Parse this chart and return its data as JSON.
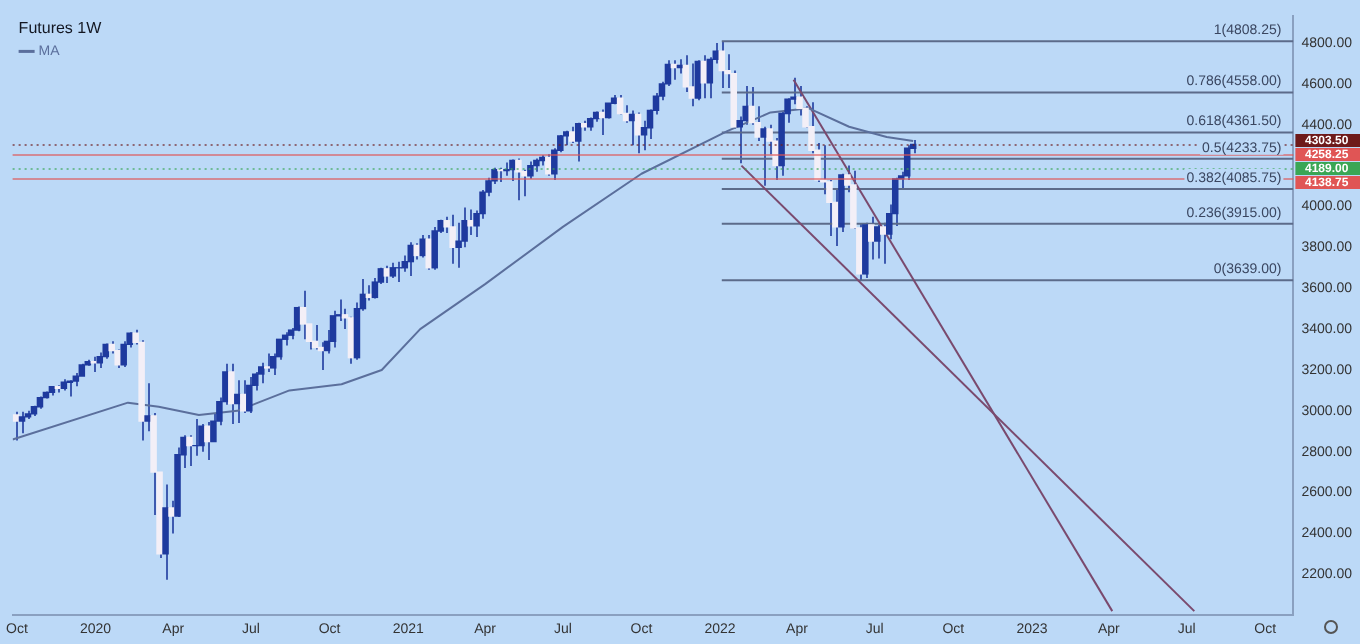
{
  "chart_data": {
    "type": "candlestick",
    "title": "Futures 1W",
    "legend": "top left",
    "xlim": [
      "2019-09-26",
      "2023-11-03"
    ],
    "ylim": [
      2000,
      4930
    ],
    "xticks": [
      {
        "value": "2019-10-01",
        "label": "Oct"
      },
      {
        "value": "2020-01-01",
        "label": "2020"
      },
      {
        "value": "2020-04-01",
        "label": "Apr"
      },
      {
        "value": "2020-07-01",
        "label": "Jul"
      },
      {
        "value": "2020-10-01",
        "label": "Oct"
      },
      {
        "value": "2021-01-01",
        "label": "2021"
      },
      {
        "value": "2021-04-01",
        "label": "Apr"
      },
      {
        "value": "2021-07-01",
        "label": "Jul"
      },
      {
        "value": "2021-10-01",
        "label": "Oct"
      },
      {
        "value": "2022-01-01",
        "label": "2022"
      },
      {
        "value": "2022-04-01",
        "label": "Apr"
      },
      {
        "value": "2022-07-01",
        "label": "Jul"
      },
      {
        "value": "2022-10-01",
        "label": "Oct"
      },
      {
        "value": "2023-01-01",
        "label": "2023"
      },
      {
        "value": "2023-04-01",
        "label": "Apr"
      },
      {
        "value": "2023-07-01",
        "label": "Jul"
      },
      {
        "value": "2023-10-01",
        "label": "Oct"
      }
    ],
    "yticks": [
      {
        "value": 2200,
        "label": "2200.00"
      },
      {
        "value": 2400,
        "label": "2400.00"
      },
      {
        "value": 2600,
        "label": "2600.00"
      },
      {
        "value": 2800,
        "label": "2800.00"
      },
      {
        "value": 3000,
        "label": "3000.00"
      },
      {
        "value": 3200,
        "label": "3200.00"
      },
      {
        "value": 3400,
        "label": "3400.00"
      },
      {
        "value": 3600,
        "label": "3600.00"
      },
      {
        "value": 3800,
        "label": "3800.00"
      },
      {
        "value": 4000,
        "label": "4000.00"
      },
      {
        "value": 4400,
        "label": "4400.00"
      },
      {
        "value": 4600,
        "label": "4600.00"
      },
      {
        "value": 4800,
        "label": "4800.00"
      }
    ],
    "series": [
      {
        "type": "line",
        "name": "MA",
        "color": "#5b6f9c",
        "x": [
          "2019-09-26",
          "2020-02-08",
          "2020-03-15",
          "2020-05-01",
          "2020-06-15",
          "2020-08-15",
          "2020-10-15",
          "2020-12-01",
          "2021-01-15",
          "2021-04-01",
          "2021-07-01",
          "2021-10-01",
          "2022-01-10",
          "2022-03-01",
          "2022-04-15",
          "2022-06-01",
          "2022-07-15",
          "2022-08-15"
        ],
        "values": [
          2860,
          3040,
          3020,
          2980,
          3000,
          3100,
          3130,
          3200,
          3400,
          3620,
          3900,
          4160,
          4370,
          4460,
          4480,
          4390,
          4340,
          4320
        ]
      },
      {
        "type": "line",
        "color": "#7a4a6e",
        "x": [
          "2022-01-26",
          "2023-07-10"
        ],
        "values": [
          4200,
          2020
        ]
      },
      {
        "type": "line",
        "color": "#7a4a6e",
        "x": [
          "2022-03-28",
          "2023-04-05"
        ],
        "values": [
          4620,
          2020
        ]
      },
      {
        "type": "line",
        "color": "#5c6b8a",
        "x": [
          "2022-01-03",
          "2023-11-03"
        ],
        "values": [
          4808.25,
          4808.25
        ]
      },
      {
        "type": "line",
        "color": "#5c6b8a",
        "x": [
          "2022-01-03",
          "2023-11-03"
        ],
        "values": [
          4558,
          4558
        ]
      },
      {
        "type": "line",
        "color": "#5c6b8a",
        "x": [
          "2022-01-03",
          "2023-11-03"
        ],
        "values": [
          4361.5,
          4361.5
        ]
      },
      {
        "type": "line",
        "color": "#5c6b8a",
        "x": [
          "2022-01-03",
          "2023-11-03"
        ],
        "values": [
          4233.75,
          4233.75
        ]
      },
      {
        "type": "line",
        "color": "#5c6b8a",
        "x": [
          "2022-01-03",
          "2023-11-03"
        ],
        "values": [
          4085.75,
          4085.75
        ]
      },
      {
        "type": "line",
        "color": "#5c6b8a",
        "x": [
          "2022-01-03",
          "2023-11-03"
        ],
        "values": [
          3915,
          3915
        ]
      },
      {
        "type": "line",
        "color": "#5c6b8a",
        "x": [
          "2022-01-03",
          "2023-11-03"
        ],
        "values": [
          3639,
          3639
        ]
      },
      {
        "color": "#1e3a9e",
        "colors": [
          "#f3eff7",
          "#1e3a9e",
          "#1e3a9e",
          "#1e3a9e",
          "#1e3a9e",
          "#1e3a9e",
          "#1e3a9e",
          "#f3eff7",
          "#1e3a9e",
          "#1e3a9e",
          "#1e3a9e",
          "#1e3a9e",
          "#1e3a9e",
          "#f3eff7",
          "#1e3a9e",
          "#1e3a9e",
          "#f3eff7",
          "#f3eff7",
          "#1e3a9e",
          "#1e3a9e",
          "#f3eff7",
          "#f3eff7",
          "#1e3a9e",
          "#f3eff7",
          "#f3eff7",
          "#1e3a9e",
          "#f3eff7",
          "#1e3a9e",
          "#1e3a9e",
          "#f3eff7",
          "#1e3a9e",
          "#1e3a9e",
          "#f3eff7",
          "#1e3a9e",
          "#1e3a9e",
          "#1e3a9e",
          "#f3eff7",
          "#1e3a9e",
          "#f3eff7",
          "#1e3a9e",
          "#1e3a9e",
          "#1e3a9e",
          "#f3eff7",
          "#1e3a9e",
          "#1e3a9e",
          "#1e3a9e",
          "#1e3a9e",
          "#1e3a9e",
          "#f3eff7",
          "#f3eff7",
          "#f3eff7",
          "#f3eff7",
          "#1e3a9e",
          "#1e3a9e",
          "#1e3a9e",
          "#f3eff7",
          "#f3eff7",
          "#1e3a9e",
          "#1e3a9e",
          "#f3eff7",
          "#1e3a9e",
          "#1e3a9e",
          "#f3eff7",
          "#1e3a9e",
          "#1e3a9e",
          "#1e3a9e",
          "#1e3a9e",
          "#f3eff7",
          "#1e3a9e",
          "#f3eff7",
          "#1e3a9e",
          "#1e3a9e",
          "#f3eff7",
          "#f3eff7",
          "#1e3a9e",
          "#1e3a9e",
          "#f3eff7",
          "#1e3a9e",
          "#1e3a9e",
          "#1e3a9e",
          "#1e3a9e",
          "#f3eff7",
          "#1e3a9e",
          "#1e3a9e",
          "#f3eff7",
          "#f3eff7",
          "#1e3a9e",
          "#1e3a9e",
          "#1e3a9e",
          "#f3eff7",
          "#1e3a9e",
          "#1e3a9e",
          "#1e3a9e",
          "#f3eff7",
          "#1e3a9e",
          "#f3eff7",
          "#1e3a9e",
          "#1e3a9e",
          "#f3eff7",
          "#1e3a9e",
          "#1e3a9e",
          "#f3eff7",
          "#f3eff7",
          "#1e3a9e",
          "#f3eff7",
          "#1e3a9e",
          "#1e3a9e",
          "#1e3a9e",
          "#1e3a9e",
          "#1e3a9e",
          "#f3eff7",
          "#1e3a9e",
          "#f3eff7",
          "#f3eff7",
          "#1e3a9e",
          "#f3eff7",
          "#1e3a9e",
          "#1e3a9e",
          "#f3eff7",
          "#f3eff7",
          "#f3eff7",
          "#1e3a9e",
          "#1e3a9e",
          "#f3eff7",
          "#f3eff7",
          "#1e3a9e",
          "#f3eff7",
          "#f3eff7",
          "#1e3a9e",
          "#1e3a9e",
          "#1e3a9e",
          "#f3eff7",
          "#f3eff7",
          "#f3eff7",
          "#f3eff7",
          "#f3eff7",
          "#f3eff7",
          "#f3eff7",
          "#1e3a9e",
          "#f3eff7",
          "#f3eff7",
          "#f3eff7",
          "#1e3a9e",
          "#f3eff7",
          "#1e3a9e",
          "#f3eff7",
          "#1e3a9e",
          "#1e3a9e",
          "#1e3a9e",
          "#1e3a9e",
          "#1e3a9e"
        ],
        "x": [
          "2019-09-30",
          "2019-10-07",
          "2019-10-14",
          "2019-10-21",
          "2019-10-28",
          "2019-11-04",
          "2019-11-11",
          "2019-11-18",
          "2019-11-25",
          "2019-12-02",
          "2019-12-09",
          "2019-12-16",
          "2019-12-23",
          "2019-12-30",
          "2020-01-06",
          "2020-01-13",
          "2020-01-20",
          "2020-01-27",
          "2020-02-03",
          "2020-02-10",
          "2020-02-17",
          "2020-02-24",
          "2020-03-02",
          "2020-03-09",
          "2020-03-16",
          "2020-03-23",
          "2020-03-30",
          "2020-04-06",
          "2020-04-13",
          "2020-04-20",
          "2020-04-27",
          "2020-05-04",
          "2020-05-11",
          "2020-05-18",
          "2020-05-25",
          "2020-06-01",
          "2020-06-08",
          "2020-06-15",
          "2020-06-22",
          "2020-06-29",
          "2020-07-06",
          "2020-07-13",
          "2020-07-20",
          "2020-07-27",
          "2020-08-03",
          "2020-08-10",
          "2020-08-17",
          "2020-08-24",
          "2020-08-31",
          "2020-09-07",
          "2020-09-14",
          "2020-09-21",
          "2020-09-28",
          "2020-10-05",
          "2020-10-12",
          "2020-10-19",
          "2020-10-26",
          "2020-11-02",
          "2020-11-09",
          "2020-11-16",
          "2020-11-23",
          "2020-11-30",
          "2020-12-07",
          "2020-12-14",
          "2020-12-21",
          "2020-12-28",
          "2021-01-04",
          "2021-01-11",
          "2021-01-18",
          "2021-01-25",
          "2021-02-01",
          "2021-02-08",
          "2021-02-15",
          "2021-02-22",
          "2021-03-01",
          "2021-03-08",
          "2021-03-15",
          "2021-03-22",
          "2021-03-29",
          "2021-04-05",
          "2021-04-12",
          "2021-04-19",
          "2021-04-26",
          "2021-05-03",
          "2021-05-10",
          "2021-05-17",
          "2021-05-24",
          "2021-05-31",
          "2021-06-07",
          "2021-06-14",
          "2021-06-21",
          "2021-06-28",
          "2021-07-05",
          "2021-07-12",
          "2021-07-19",
          "2021-07-26",
          "2021-08-02",
          "2021-08-09",
          "2021-08-16",
          "2021-08-23",
          "2021-08-30",
          "2021-09-06",
          "2021-09-13",
          "2021-09-20",
          "2021-09-27",
          "2021-10-04",
          "2021-10-11",
          "2021-10-18",
          "2021-10-25",
          "2021-11-01",
          "2021-11-08",
          "2021-11-15",
          "2021-11-22",
          "2021-11-29",
          "2021-12-06",
          "2021-12-13",
          "2021-12-20",
          "2021-12-27",
          "2022-01-03",
          "2022-01-10",
          "2022-01-17",
          "2022-01-24",
          "2022-01-31",
          "2022-02-07",
          "2022-02-14",
          "2022-02-21",
          "2022-02-28",
          "2022-03-07",
          "2022-03-14",
          "2022-03-21",
          "2022-03-28",
          "2022-04-04",
          "2022-04-11",
          "2022-04-18",
          "2022-04-25",
          "2022-05-02",
          "2022-05-09",
          "2022-05-16",
          "2022-05-23",
          "2022-05-30",
          "2022-06-06",
          "2022-06-13",
          "2022-06-20",
          "2022-06-27",
          "2022-07-04",
          "2022-07-11",
          "2022-07-18",
          "2022-07-25",
          "2022-08-01",
          "2022-08-08",
          "2022-08-15"
        ],
        "ohlc": [
          [
            2980,
            2995,
            2855,
            2950
          ],
          [
            2950,
            2995,
            2890,
            2970
          ],
          [
            2970,
            3000,
            2960,
            2985
          ],
          [
            2985,
            3025,
            2975,
            3020
          ],
          [
            3020,
            3070,
            3010,
            3065
          ],
          [
            3065,
            3095,
            3060,
            3090
          ],
          [
            3090,
            3120,
            3075,
            3118
          ],
          [
            3118,
            3125,
            3090,
            3110
          ],
          [
            3110,
            3155,
            3100,
            3140
          ],
          [
            3140,
            3150,
            3070,
            3145
          ],
          [
            3145,
            3185,
            3120,
            3170
          ],
          [
            3170,
            3230,
            3170,
            3225
          ],
          [
            3225,
            3250,
            3220,
            3240
          ],
          [
            3240,
            3265,
            3190,
            3235
          ],
          [
            3235,
            3285,
            3210,
            3265
          ],
          [
            3265,
            3330,
            3255,
            3325
          ],
          [
            3325,
            3340,
            3280,
            3295
          ],
          [
            3295,
            3300,
            3210,
            3225
          ],
          [
            3225,
            3340,
            3215,
            3325
          ],
          [
            3325,
            3385,
            3310,
            3380
          ],
          [
            3380,
            3397,
            3325,
            3335
          ],
          [
            3335,
            3345,
            2855,
            2950
          ],
          [
            2950,
            3135,
            2900,
            2975
          ],
          [
            2975,
            2990,
            2490,
            2700
          ],
          [
            2700,
            2700,
            2280,
            2300
          ],
          [
            2300,
            2640,
            2174,
            2525
          ],
          [
            2525,
            2560,
            2400,
            2485
          ],
          [
            2485,
            2820,
            2480,
            2785
          ],
          [
            2785,
            2880,
            2720,
            2870
          ],
          [
            2870,
            2880,
            2730,
            2830
          ],
          [
            2830,
            2960,
            2780,
            2830
          ],
          [
            2830,
            2935,
            2800,
            2925
          ],
          [
            2925,
            2945,
            2760,
            2850
          ],
          [
            2850,
            2990,
            2850,
            2950
          ],
          [
            2950,
            3065,
            2930,
            3045
          ],
          [
            3045,
            3230,
            3030,
            3190
          ],
          [
            3190,
            3230,
            2935,
            3035
          ],
          [
            3035,
            3150,
            2940,
            3080
          ],
          [
            3080,
            3150,
            2990,
            3000
          ],
          [
            3000,
            3165,
            2990,
            3125
          ],
          [
            3125,
            3190,
            3100,
            3180
          ],
          [
            3180,
            3235,
            3135,
            3215
          ],
          [
            3215,
            3280,
            3190,
            3210
          ],
          [
            3210,
            3280,
            3175,
            3265
          ],
          [
            3265,
            3350,
            3250,
            3350
          ],
          [
            3350,
            3385,
            3320,
            3370
          ],
          [
            3370,
            3405,
            3350,
            3395
          ],
          [
            3395,
            3510,
            3390,
            3505
          ],
          [
            3505,
            3587,
            3350,
            3425
          ],
          [
            3425,
            3425,
            3300,
            3340
          ],
          [
            3340,
            3420,
            3300,
            3310
          ],
          [
            3310,
            3335,
            3200,
            3295
          ],
          [
            3295,
            3395,
            3280,
            3340
          ],
          [
            3340,
            3490,
            3310,
            3465
          ],
          [
            3465,
            3545,
            3440,
            3470
          ],
          [
            3470,
            3500,
            3400,
            3455
          ],
          [
            3455,
            3460,
            3230,
            3260
          ],
          [
            3260,
            3530,
            3250,
            3500
          ],
          [
            3500,
            3645,
            3490,
            3570
          ],
          [
            3570,
            3615,
            3540,
            3555
          ],
          [
            3555,
            3650,
            3550,
            3630
          ],
          [
            3630,
            3700,
            3620,
            3695
          ],
          [
            3695,
            3710,
            3625,
            3660
          ],
          [
            3660,
            3725,
            3650,
            3700
          ],
          [
            3700,
            3730,
            3630,
            3700
          ],
          [
            3700,
            3760,
            3680,
            3730
          ],
          [
            3730,
            3825,
            3660,
            3810
          ],
          [
            3810,
            3820,
            3740,
            3760
          ],
          [
            3760,
            3860,
            3750,
            3840
          ],
          [
            3840,
            3860,
            3690,
            3700
          ],
          [
            3700,
            3900,
            3690,
            3880
          ],
          [
            3880,
            3935,
            3870,
            3930
          ],
          [
            3930,
            3950,
            3870,
            3900
          ],
          [
            3900,
            3960,
            3720,
            3800
          ],
          [
            3800,
            3920,
            3700,
            3830
          ],
          [
            3830,
            3995,
            3800,
            3930
          ],
          [
            3930,
            3985,
            3860,
            3905
          ],
          [
            3905,
            3980,
            3850,
            3965
          ],
          [
            3965,
            4080,
            3940,
            4070
          ],
          [
            4070,
            4140,
            4050,
            4125
          ],
          [
            4125,
            4190,
            4110,
            4180
          ],
          [
            4180,
            4190,
            4120,
            4175
          ],
          [
            4175,
            4215,
            4150,
            4180
          ],
          [
            4180,
            4230,
            4125,
            4225
          ],
          [
            4225,
            4235,
            4030,
            4170
          ],
          [
            4170,
            4180,
            4050,
            4150
          ],
          [
            4150,
            4220,
            4135,
            4200
          ],
          [
            4200,
            4235,
            4170,
            4225
          ],
          [
            4225,
            4250,
            4200,
            4240
          ],
          [
            4240,
            4255,
            4150,
            4160
          ],
          [
            4160,
            4285,
            4130,
            4275
          ],
          [
            4275,
            4350,
            4265,
            4345
          ],
          [
            4345,
            4370,
            4300,
            4365
          ],
          [
            4365,
            4390,
            4310,
            4320
          ],
          [
            4320,
            4410,
            4220,
            4405
          ],
          [
            4405,
            4420,
            4370,
            4390
          ],
          [
            4390,
            4435,
            4370,
            4430
          ],
          [
            4430,
            4465,
            4415,
            4460
          ],
          [
            4460,
            4475,
            4350,
            4435
          ],
          [
            4435,
            4505,
            4430,
            4505
          ],
          [
            4505,
            4545,
            4500,
            4530
          ],
          [
            4530,
            4545,
            4450,
            4455
          ],
          [
            4455,
            4495,
            4410,
            4420
          ],
          [
            4420,
            4470,
            4300,
            4450
          ],
          [
            4450,
            4460,
            4260,
            4350
          ],
          [
            4350,
            4420,
            4275,
            4385
          ],
          [
            4385,
            4475,
            4330,
            4470
          ],
          [
            4470,
            4555,
            4450,
            4540
          ],
          [
            4540,
            4610,
            4520,
            4600
          ],
          [
            4600,
            4715,
            4590,
            4695
          ],
          [
            4695,
            4715,
            4620,
            4680
          ],
          [
            4680,
            4720,
            4650,
            4690
          ],
          [
            4690,
            4740,
            4560,
            4585
          ],
          [
            4585,
            4700,
            4490,
            4530
          ],
          [
            4530,
            4715,
            4520,
            4710
          ],
          [
            4710,
            4740,
            4530,
            4605
          ],
          [
            4605,
            4730,
            4530,
            4720
          ],
          [
            4720,
            4800,
            4700,
            4760
          ],
          [
            4760,
            4808,
            4580,
            4665
          ],
          [
            4665,
            4745,
            4580,
            4650
          ],
          [
            4650,
            4665,
            4380,
            4390
          ],
          [
            4390,
            4440,
            4212,
            4420
          ],
          [
            4420,
            4590,
            4400,
            4490
          ],
          [
            4490,
            4585,
            4400,
            4410
          ],
          [
            4410,
            4490,
            4320,
            4340
          ],
          [
            4340,
            4390,
            4101,
            4380
          ],
          [
            4380,
            4400,
            4255,
            4320
          ],
          [
            4320,
            4335,
            4130,
            4200
          ],
          [
            4200,
            4465,
            4150,
            4455
          ],
          [
            4455,
            4530,
            4410,
            4525
          ],
          [
            4525,
            4630,
            4500,
            4535
          ],
          [
            4535,
            4590,
            4445,
            4480
          ],
          [
            4480,
            4490,
            4385,
            4390
          ],
          [
            4390,
            4510,
            4260,
            4275
          ],
          [
            4275,
            4310,
            4120,
            4130
          ],
          [
            4130,
            4300,
            4060,
            4120
          ],
          [
            4120,
            4130,
            3855,
            4020
          ],
          [
            4020,
            4090,
            3807,
            3900
          ],
          [
            3900,
            4160,
            3875,
            4155
          ],
          [
            4155,
            4200,
            4070,
            4105
          ],
          [
            4105,
            4175,
            3890,
            3895
          ],
          [
            3895,
            3915,
            3639,
            3670
          ],
          [
            3670,
            3920,
            3650,
            3910
          ],
          [
            3910,
            3950,
            3740,
            3830
          ],
          [
            3830,
            3910,
            3745,
            3900
          ],
          [
            3900,
            3920,
            3720,
            3865
          ],
          [
            3865,
            4010,
            3840,
            3965
          ],
          [
            3965,
            4140,
            3905,
            4135
          ],
          [
            4135,
            4170,
            4080,
            4150
          ],
          [
            4150,
            4300,
            4130,
            4285
          ],
          [
            4285,
            4325,
            4260,
            4303.5
          ]
        ]
      }
    ],
    "ref_lines": [
      {
        "axis": "y",
        "value": 4303.5,
        "label": "4303.50",
        "color": "#6e1a1a",
        "line_style": "dotted"
      },
      {
        "axis": "y",
        "value": 4258.25,
        "label": "4258.25",
        "color": "#e05555",
        "line_style": "solid"
      },
      {
        "axis": "y",
        "value": 4189,
        "label": "4189.00",
        "color": "#3aa655",
        "line_style": "dotted"
      },
      {
        "axis": "y",
        "value": 4138.75,
        "label": "4138.75",
        "color": "#e05555",
        "line_style": "solid"
      }
    ],
    "annotations": [
      {
        "text": "1(4808.25)",
        "x": "2023-10-20",
        "y": 4808.25
      },
      {
        "text": "0.786(4558.00)",
        "x": "2023-10-20",
        "y": 4558
      },
      {
        "text": "0.618(4361.50)",
        "x": "2023-10-20",
        "y": 4361.5
      },
      {
        "text": "0.5(4233.75)",
        "x": "2023-10-20",
        "y": 4233.75
      },
      {
        "text": "0.382(4085.75)",
        "x": "2023-10-20",
        "y": 4085.75
      },
      {
        "text": "0.236(3915.00)",
        "x": "2023-10-20",
        "y": 3915
      },
      {
        "text": "0(3639.00)",
        "x": "2023-10-20",
        "y": 3639
      }
    ]
  }
}
